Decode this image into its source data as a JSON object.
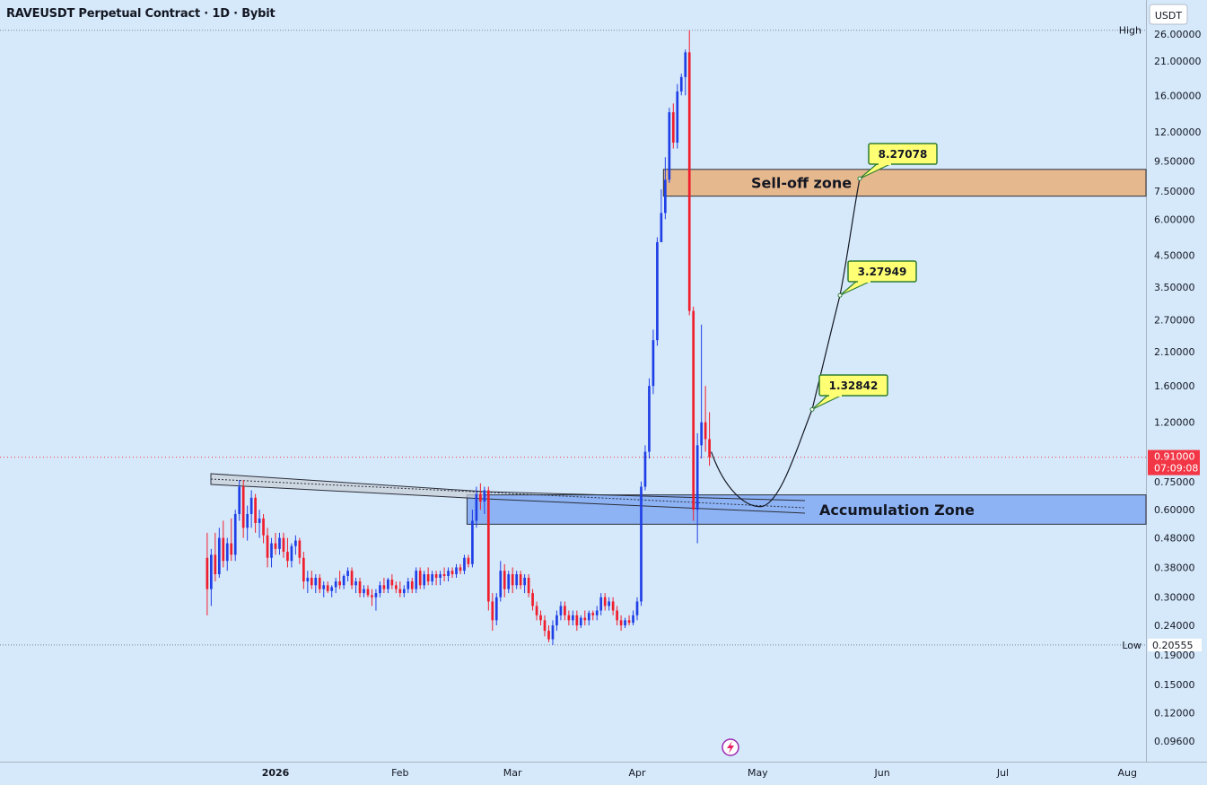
{
  "header": {
    "title": "RAVEUSDT Perpetual Contract · 1D · Bybit"
  },
  "axis": {
    "currency": "USDT"
  },
  "colors": {
    "background": "#d6e9fb",
    "up": "#1f3fe6",
    "down": "#f01e2c",
    "selloff_fill": "#e6b88e",
    "accumulation_fill": "#8db3f5",
    "callout_fill": "#ffff73",
    "callout_border": "#2e7d32",
    "price_line": "#f23645"
  },
  "chart_data": {
    "type": "candlestick",
    "title": "RAVEUSDT Perpetual Contract · 1D · Bybit",
    "y_scale": "log",
    "ylim": [
      0.085,
      28.5
    ],
    "y_ticks": [
      {
        "value": 26,
        "label": "26.00000"
      },
      {
        "value": 21,
        "label": "21.00000"
      },
      {
        "value": 16,
        "label": "16.00000"
      },
      {
        "value": 12,
        "label": "12.00000"
      },
      {
        "value": 9.5,
        "label": "9.50000"
      },
      {
        "value": 7.5,
        "label": "7.50000"
      },
      {
        "value": 6,
        "label": "6.00000"
      },
      {
        "value": 4.5,
        "label": "4.50000"
      },
      {
        "value": 3.5,
        "label": "3.50000"
      },
      {
        "value": 2.7,
        "label": "2.70000"
      },
      {
        "value": 2.1,
        "label": "2.10000"
      },
      {
        "value": 1.6,
        "label": "1.60000"
      },
      {
        "value": 1.2,
        "label": "1.20000"
      },
      {
        "value": 0.75,
        "label": "0.75000"
      },
      {
        "value": 0.6,
        "label": "0.60000"
      },
      {
        "value": 0.48,
        "label": "0.48000"
      },
      {
        "value": 0.38,
        "label": "0.38000"
      },
      {
        "value": 0.3,
        "label": "0.30000"
      },
      {
        "value": 0.24,
        "label": "0.24000"
      },
      {
        "value": 0.19,
        "label": "0.19000"
      },
      {
        "value": 0.15,
        "label": "0.15000"
      },
      {
        "value": 0.12,
        "label": "0.12000"
      },
      {
        "value": 0.096,
        "label": "0.09600"
      }
    ],
    "x_ticks": [
      {
        "date": "2026-01-01",
        "label": "2026",
        "bold": true
      },
      {
        "date": "2026-02-01",
        "label": "Feb"
      },
      {
        "date": "2026-03-01",
        "label": "Mar"
      },
      {
        "date": "2026-04-01",
        "label": "Apr"
      },
      {
        "date": "2026-05-01",
        "label": "May"
      },
      {
        "date": "2026-06-01",
        "label": "Jun"
      },
      {
        "date": "2026-07-01",
        "label": "Jul"
      },
      {
        "date": "2026-08-01",
        "label": "Aug"
      }
    ],
    "high": {
      "label": "High",
      "value": 26.8
    },
    "low": {
      "label": "Low",
      "value": 0.20555,
      "value_label": "0.20555"
    },
    "last_price": {
      "value": 0.91,
      "label": "0.91000",
      "countdown": "07:09:08"
    },
    "candles": [
      {
        "date": "2025-12-15",
        "o": 0.41,
        "h": 0.5,
        "l": 0.26,
        "c": 0.32
      },
      {
        "date": "2025-12-16",
        "o": 0.32,
        "h": 0.44,
        "l": 0.28,
        "c": 0.42
      },
      {
        "date": "2025-12-17",
        "o": 0.42,
        "h": 0.5,
        "l": 0.34,
        "c": 0.36
      },
      {
        "date": "2025-12-18",
        "o": 0.36,
        "h": 0.52,
        "l": 0.35,
        "c": 0.48
      },
      {
        "date": "2025-12-19",
        "o": 0.48,
        "h": 0.55,
        "l": 0.38,
        "c": 0.4
      },
      {
        "date": "2025-12-20",
        "o": 0.4,
        "h": 0.48,
        "l": 0.37,
        "c": 0.46
      },
      {
        "date": "2025-12-21",
        "o": 0.46,
        "h": 0.56,
        "l": 0.4,
        "c": 0.42
      },
      {
        "date": "2025-12-22",
        "o": 0.42,
        "h": 0.6,
        "l": 0.4,
        "c": 0.58
      },
      {
        "date": "2025-12-23",
        "o": 0.58,
        "h": 0.76,
        "l": 0.55,
        "c": 0.72
      },
      {
        "date": "2025-12-24",
        "o": 0.72,
        "h": 0.76,
        "l": 0.48,
        "c": 0.52
      },
      {
        "date": "2025-12-25",
        "o": 0.52,
        "h": 0.62,
        "l": 0.47,
        "c": 0.58
      },
      {
        "date": "2025-12-26",
        "o": 0.58,
        "h": 0.7,
        "l": 0.52,
        "c": 0.66
      },
      {
        "date": "2025-12-27",
        "o": 0.66,
        "h": 0.68,
        "l": 0.5,
        "c": 0.54
      },
      {
        "date": "2025-12-28",
        "o": 0.54,
        "h": 0.6,
        "l": 0.48,
        "c": 0.56
      },
      {
        "date": "2025-12-29",
        "o": 0.56,
        "h": 0.58,
        "l": 0.46,
        "c": 0.49
      },
      {
        "date": "2025-12-30",
        "o": 0.49,
        "h": 0.52,
        "l": 0.38,
        "c": 0.41
      },
      {
        "date": "2025-12-31",
        "o": 0.41,
        "h": 0.48,
        "l": 0.38,
        "c": 0.46
      },
      {
        "date": "2026-01-01",
        "o": 0.46,
        "h": 0.5,
        "l": 0.42,
        "c": 0.44
      },
      {
        "date": "2026-01-02",
        "o": 0.44,
        "h": 0.5,
        "l": 0.42,
        "c": 0.48
      },
      {
        "date": "2026-01-03",
        "o": 0.48,
        "h": 0.5,
        "l": 0.41,
        "c": 0.43
      },
      {
        "date": "2026-01-04",
        "o": 0.43,
        "h": 0.48,
        "l": 0.38,
        "c": 0.4
      },
      {
        "date": "2026-01-05",
        "o": 0.4,
        "h": 0.46,
        "l": 0.38,
        "c": 0.45
      },
      {
        "date": "2026-01-06",
        "o": 0.45,
        "h": 0.49,
        "l": 0.42,
        "c": 0.47
      },
      {
        "date": "2026-01-07",
        "o": 0.47,
        "h": 0.48,
        "l": 0.39,
        "c": 0.41
      },
      {
        "date": "2026-01-08",
        "o": 0.41,
        "h": 0.43,
        "l": 0.32,
        "c": 0.34
      },
      {
        "date": "2026-01-09",
        "o": 0.34,
        "h": 0.37,
        "l": 0.31,
        "c": 0.35
      },
      {
        "date": "2026-01-10",
        "o": 0.35,
        "h": 0.37,
        "l": 0.32,
        "c": 0.33
      },
      {
        "date": "2026-01-11",
        "o": 0.33,
        "h": 0.36,
        "l": 0.31,
        "c": 0.35
      },
      {
        "date": "2026-01-12",
        "o": 0.35,
        "h": 0.36,
        "l": 0.31,
        "c": 0.32
      },
      {
        "date": "2026-01-13",
        "o": 0.32,
        "h": 0.34,
        "l": 0.3,
        "c": 0.33
      },
      {
        "date": "2026-01-14",
        "o": 0.33,
        "h": 0.34,
        "l": 0.31,
        "c": 0.315
      },
      {
        "date": "2026-01-15",
        "o": 0.315,
        "h": 0.33,
        "l": 0.3,
        "c": 0.325
      },
      {
        "date": "2026-01-16",
        "o": 0.325,
        "h": 0.35,
        "l": 0.31,
        "c": 0.34
      },
      {
        "date": "2026-01-17",
        "o": 0.34,
        "h": 0.37,
        "l": 0.32,
        "c": 0.33
      },
      {
        "date": "2026-01-18",
        "o": 0.33,
        "h": 0.36,
        "l": 0.32,
        "c": 0.355
      },
      {
        "date": "2026-01-19",
        "o": 0.355,
        "h": 0.38,
        "l": 0.34,
        "c": 0.37
      },
      {
        "date": "2026-01-20",
        "o": 0.37,
        "h": 0.38,
        "l": 0.32,
        "c": 0.33
      },
      {
        "date": "2026-01-21",
        "o": 0.33,
        "h": 0.35,
        "l": 0.31,
        "c": 0.34
      },
      {
        "date": "2026-01-22",
        "o": 0.34,
        "h": 0.35,
        "l": 0.3,
        "c": 0.31
      },
      {
        "date": "2026-01-23",
        "o": 0.31,
        "h": 0.33,
        "l": 0.3,
        "c": 0.32
      },
      {
        "date": "2026-01-24",
        "o": 0.32,
        "h": 0.33,
        "l": 0.3,
        "c": 0.305
      },
      {
        "date": "2026-01-25",
        "o": 0.305,
        "h": 0.32,
        "l": 0.28,
        "c": 0.3
      },
      {
        "date": "2026-01-26",
        "o": 0.3,
        "h": 0.32,
        "l": 0.27,
        "c": 0.31
      },
      {
        "date": "2026-01-27",
        "o": 0.31,
        "h": 0.34,
        "l": 0.3,
        "c": 0.33
      },
      {
        "date": "2026-01-28",
        "o": 0.33,
        "h": 0.35,
        "l": 0.31,
        "c": 0.32
      },
      {
        "date": "2026-01-29",
        "o": 0.32,
        "h": 0.35,
        "l": 0.31,
        "c": 0.345
      },
      {
        "date": "2026-01-30",
        "o": 0.345,
        "h": 0.36,
        "l": 0.32,
        "c": 0.33
      },
      {
        "date": "2026-01-31",
        "o": 0.33,
        "h": 0.34,
        "l": 0.31,
        "c": 0.32
      },
      {
        "date": "2026-02-01",
        "o": 0.32,
        "h": 0.34,
        "l": 0.3,
        "c": 0.31
      },
      {
        "date": "2026-02-02",
        "o": 0.31,
        "h": 0.33,
        "l": 0.3,
        "c": 0.32
      },
      {
        "date": "2026-02-03",
        "o": 0.32,
        "h": 0.35,
        "l": 0.31,
        "c": 0.34
      },
      {
        "date": "2026-02-04",
        "o": 0.34,
        "h": 0.35,
        "l": 0.31,
        "c": 0.32
      },
      {
        "date": "2026-02-05",
        "o": 0.32,
        "h": 0.38,
        "l": 0.31,
        "c": 0.37
      },
      {
        "date": "2026-02-06",
        "o": 0.37,
        "h": 0.38,
        "l": 0.32,
        "c": 0.33
      },
      {
        "date": "2026-02-07",
        "o": 0.33,
        "h": 0.37,
        "l": 0.32,
        "c": 0.36
      },
      {
        "date": "2026-02-08",
        "o": 0.36,
        "h": 0.38,
        "l": 0.33,
        "c": 0.34
      },
      {
        "date": "2026-02-09",
        "o": 0.34,
        "h": 0.37,
        "l": 0.33,
        "c": 0.36
      },
      {
        "date": "2026-02-10",
        "o": 0.36,
        "h": 0.37,
        "l": 0.33,
        "c": 0.35
      },
      {
        "date": "2026-02-11",
        "o": 0.35,
        "h": 0.37,
        "l": 0.33,
        "c": 0.36
      },
      {
        "date": "2026-02-12",
        "o": 0.36,
        "h": 0.38,
        "l": 0.34,
        "c": 0.355
      },
      {
        "date": "2026-02-13",
        "o": 0.355,
        "h": 0.38,
        "l": 0.34,
        "c": 0.37
      },
      {
        "date": "2026-02-14",
        "o": 0.37,
        "h": 0.38,
        "l": 0.35,
        "c": 0.36
      },
      {
        "date": "2026-02-15",
        "o": 0.36,
        "h": 0.39,
        "l": 0.35,
        "c": 0.38
      },
      {
        "date": "2026-02-16",
        "o": 0.38,
        "h": 0.39,
        "l": 0.36,
        "c": 0.37
      },
      {
        "date": "2026-02-17",
        "o": 0.37,
        "h": 0.42,
        "l": 0.36,
        "c": 0.41
      },
      {
        "date": "2026-02-18",
        "o": 0.41,
        "h": 0.42,
        "l": 0.38,
        "c": 0.39
      },
      {
        "date": "2026-02-19",
        "o": 0.39,
        "h": 0.6,
        "l": 0.38,
        "c": 0.55
      },
      {
        "date": "2026-02-20",
        "o": 0.55,
        "h": 0.72,
        "l": 0.52,
        "c": 0.68
      },
      {
        "date": "2026-02-21",
        "o": 0.68,
        "h": 0.74,
        "l": 0.6,
        "c": 0.64
      },
      {
        "date": "2026-02-22",
        "o": 0.64,
        "h": 0.72,
        "l": 0.58,
        "c": 0.7
      },
      {
        "date": "2026-02-23",
        "o": 0.7,
        "h": 0.72,
        "l": 0.27,
        "c": 0.29
      },
      {
        "date": "2026-02-24",
        "o": 0.29,
        "h": 0.31,
        "l": 0.23,
        "c": 0.25
      },
      {
        "date": "2026-02-25",
        "o": 0.25,
        "h": 0.31,
        "l": 0.24,
        "c": 0.3
      },
      {
        "date": "2026-02-26",
        "o": 0.3,
        "h": 0.4,
        "l": 0.29,
        "c": 0.37
      },
      {
        "date": "2026-02-27",
        "o": 0.37,
        "h": 0.39,
        "l": 0.3,
        "c": 0.32
      },
      {
        "date": "2026-02-28",
        "o": 0.32,
        "h": 0.37,
        "l": 0.31,
        "c": 0.36
      },
      {
        "date": "2026-03-01",
        "o": 0.36,
        "h": 0.38,
        "l": 0.31,
        "c": 0.33
      },
      {
        "date": "2026-03-02",
        "o": 0.33,
        "h": 0.37,
        "l": 0.32,
        "c": 0.36
      },
      {
        "date": "2026-03-03",
        "o": 0.36,
        "h": 0.37,
        "l": 0.32,
        "c": 0.33
      },
      {
        "date": "2026-03-04",
        "o": 0.33,
        "h": 0.36,
        "l": 0.31,
        "c": 0.35
      },
      {
        "date": "2026-03-05",
        "o": 0.35,
        "h": 0.36,
        "l": 0.3,
        "c": 0.31
      },
      {
        "date": "2026-03-06",
        "o": 0.31,
        "h": 0.32,
        "l": 0.27,
        "c": 0.28
      },
      {
        "date": "2026-03-07",
        "o": 0.28,
        "h": 0.29,
        "l": 0.25,
        "c": 0.26
      },
      {
        "date": "2026-03-08",
        "o": 0.26,
        "h": 0.27,
        "l": 0.24,
        "c": 0.25
      },
      {
        "date": "2026-03-09",
        "o": 0.25,
        "h": 0.26,
        "l": 0.22,
        "c": 0.23
      },
      {
        "date": "2026-03-10",
        "o": 0.23,
        "h": 0.24,
        "l": 0.21,
        "c": 0.215
      },
      {
        "date": "2026-03-11",
        "o": 0.215,
        "h": 0.25,
        "l": 0.2056,
        "c": 0.24
      },
      {
        "date": "2026-03-12",
        "o": 0.24,
        "h": 0.27,
        "l": 0.23,
        "c": 0.26
      },
      {
        "date": "2026-03-13",
        "o": 0.26,
        "h": 0.29,
        "l": 0.25,
        "c": 0.28
      },
      {
        "date": "2026-03-14",
        "o": 0.28,
        "h": 0.29,
        "l": 0.25,
        "c": 0.26
      },
      {
        "date": "2026-03-15",
        "o": 0.26,
        "h": 0.27,
        "l": 0.24,
        "c": 0.25
      },
      {
        "date": "2026-03-16",
        "o": 0.25,
        "h": 0.27,
        "l": 0.24,
        "c": 0.26
      },
      {
        "date": "2026-03-17",
        "o": 0.26,
        "h": 0.27,
        "l": 0.23,
        "c": 0.24
      },
      {
        "date": "2026-03-18",
        "o": 0.24,
        "h": 0.26,
        "l": 0.235,
        "c": 0.255
      },
      {
        "date": "2026-03-19",
        "o": 0.255,
        "h": 0.27,
        "l": 0.24,
        "c": 0.25
      },
      {
        "date": "2026-03-20",
        "o": 0.25,
        "h": 0.27,
        "l": 0.24,
        "c": 0.265
      },
      {
        "date": "2026-03-21",
        "o": 0.265,
        "h": 0.27,
        "l": 0.25,
        "c": 0.26
      },
      {
        "date": "2026-03-22",
        "o": 0.26,
        "h": 0.28,
        "l": 0.25,
        "c": 0.27
      },
      {
        "date": "2026-03-23",
        "o": 0.27,
        "h": 0.31,
        "l": 0.26,
        "c": 0.3
      },
      {
        "date": "2026-03-24",
        "o": 0.3,
        "h": 0.31,
        "l": 0.27,
        "c": 0.28
      },
      {
        "date": "2026-03-25",
        "o": 0.28,
        "h": 0.3,
        "l": 0.27,
        "c": 0.29
      },
      {
        "date": "2026-03-26",
        "o": 0.29,
        "h": 0.3,
        "l": 0.26,
        "c": 0.27
      },
      {
        "date": "2026-03-27",
        "o": 0.27,
        "h": 0.28,
        "l": 0.24,
        "c": 0.25
      },
      {
        "date": "2026-03-28",
        "o": 0.25,
        "h": 0.26,
        "l": 0.23,
        "c": 0.24
      },
      {
        "date": "2026-03-29",
        "o": 0.24,
        "h": 0.255,
        "l": 0.235,
        "c": 0.25
      },
      {
        "date": "2026-03-30",
        "o": 0.25,
        "h": 0.26,
        "l": 0.24,
        "c": 0.245
      },
      {
        "date": "2026-03-31",
        "o": 0.245,
        "h": 0.27,
        "l": 0.24,
        "c": 0.26
      },
      {
        "date": "2026-04-01",
        "o": 0.26,
        "h": 0.3,
        "l": 0.25,
        "c": 0.29
      },
      {
        "date": "2026-04-02",
        "o": 0.29,
        "h": 0.75,
        "l": 0.28,
        "c": 0.72
      },
      {
        "date": "2026-04-03",
        "o": 0.72,
        "h": 1.0,
        "l": 0.7,
        "c": 0.95
      },
      {
        "date": "2026-04-04",
        "o": 0.95,
        "h": 1.7,
        "l": 0.9,
        "c": 1.6
      },
      {
        "date": "2026-04-05",
        "o": 1.6,
        "h": 2.5,
        "l": 1.5,
        "c": 2.3
      },
      {
        "date": "2026-04-06",
        "o": 2.3,
        "h": 5.2,
        "l": 2.2,
        "c": 5.0
      },
      {
        "date": "2026-04-07",
        "o": 5.0,
        "h": 7.6,
        "l": 5.2,
        "c": 6.3
      },
      {
        "date": "2026-04-08",
        "o": 6.3,
        "h": 9.8,
        "l": 6.0,
        "c": 8.2
      },
      {
        "date": "2026-04-09",
        "o": 8.2,
        "h": 14.5,
        "l": 8.0,
        "c": 14.0
      },
      {
        "date": "2026-04-10",
        "o": 14.0,
        "h": 15.0,
        "l": 10.5,
        "c": 11.0
      },
      {
        "date": "2026-04-11",
        "o": 11.0,
        "h": 17.5,
        "l": 10.5,
        "c": 16.5
      },
      {
        "date": "2026-04-12",
        "o": 16.5,
        "h": 19.0,
        "l": 16.0,
        "c": 18.5
      },
      {
        "date": "2026-04-13",
        "o": 18.5,
        "h": 23.0,
        "l": 16.0,
        "c": 22.5
      },
      {
        "date": "2026-04-14",
        "o": 22.5,
        "h": 26.8,
        "l": 2.8,
        "c": 2.9
      },
      {
        "date": "2026-04-15",
        "o": 2.9,
        "h": 3.0,
        "l": 0.55,
        "c": 0.6
      },
      {
        "date": "2026-04-16",
        "o": 0.6,
        "h": 1.1,
        "l": 0.46,
        "c": 1.0
      },
      {
        "date": "2026-04-17",
        "o": 1.0,
        "h": 2.6,
        "l": 0.9,
        "c": 1.2
      },
      {
        "date": "2026-04-18",
        "o": 1.2,
        "h": 1.6,
        "l": 0.95,
        "c": 1.05
      },
      {
        "date": "2026-04-19",
        "o": 1.05,
        "h": 1.3,
        "l": 0.85,
        "c": 0.91
      }
    ],
    "zones": [
      {
        "label": "Sell-off zone",
        "from_date": "2026-04-08",
        "top": 8.9,
        "bottom": 7.2
      },
      {
        "label": "Accumulation Zone",
        "from_date": "2026-02-19",
        "top": 0.675,
        "bottom": 0.535
      }
    ],
    "targets": [
      {
        "label": "1.32842",
        "value": 1.32842
      },
      {
        "label": "3.27949",
        "value": 3.27949
      },
      {
        "label": "8.27078",
        "value": 8.27078
      }
    ]
  }
}
